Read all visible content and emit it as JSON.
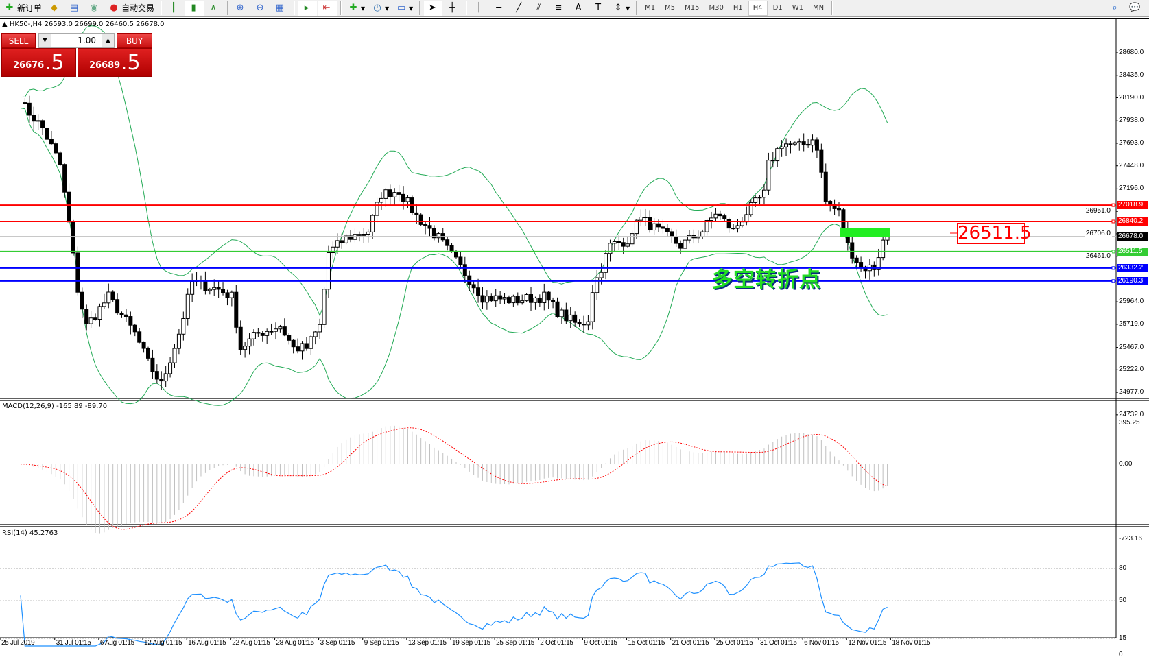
{
  "toolbar": {
    "new_order": "新订单",
    "auto_trading": "自动交易",
    "timeframes": [
      "M1",
      "M5",
      "M15",
      "M30",
      "H1",
      "H4",
      "D1",
      "W1",
      "MN"
    ],
    "active_timeframe": "H4"
  },
  "header": {
    "symbol_info": "HK50-,H4  26593.0 26699.0 26460.5 26678.0"
  },
  "trade_panel": {
    "sell_label": "SELL",
    "buy_label": "BUY",
    "lot": "1.00",
    "sell_main": "26676",
    "sell_frac": ".5",
    "buy_main": "26689",
    "buy_frac": ".5"
  },
  "annotations": {
    "price_box": "26511.5",
    "note": "多空转折点"
  },
  "colors": {
    "bull_line": "#22aa55",
    "resistance": "#ff0000",
    "pivot": "#33cc33",
    "support": "#0000ff",
    "macd_signal": "#ff0000",
    "rsi": "#1e90ff"
  },
  "chart_data": {
    "type": "candlestick",
    "symbol": "HK50-",
    "timeframe": "H4",
    "price_axis": [
      "28680.0",
      "28435.0",
      "28190.0",
      "27938.0",
      "27693.0",
      "27448.0",
      "27196.0",
      "26951.0",
      "26706.0",
      "26461.0",
      "25964.0",
      "25719.0",
      "25467.0",
      "25222.0",
      "24977.0",
      "24732.0"
    ],
    "ylim": [
      24732,
      28680
    ],
    "horizontal_lines": [
      {
        "price": 27018.9,
        "label": "27018.9",
        "color": "#ff0000"
      },
      {
        "price": 26840.2,
        "label": "26840.2",
        "color": "#ff0000"
      },
      {
        "price": 26678.0,
        "label": "26678.0",
        "color": "#000000"
      },
      {
        "price": 26511.5,
        "label": "26511.5",
        "color": "#33cc33"
      },
      {
        "price": 26332.2,
        "label": "26332.2",
        "color": "#0000ff"
      },
      {
        "price": 26190.3,
        "label": "26190.3",
        "color": "#0000ff"
      }
    ],
    "close_keypoints": [
      [
        0,
        28137
      ],
      [
        5,
        27857
      ],
      [
        9,
        27458
      ],
      [
        11,
        26818
      ],
      [
        13,
        26099
      ],
      [
        15,
        25700
      ],
      [
        20,
        26019
      ],
      [
        26,
        25620
      ],
      [
        29,
        25300
      ],
      [
        32,
        25060
      ],
      [
        36,
        25620
      ],
      [
        39,
        26179
      ],
      [
        45,
        26099
      ],
      [
        48,
        26019
      ],
      [
        50,
        25460
      ],
      [
        54,
        25620
      ],
      [
        59,
        25700
      ],
      [
        62,
        25460
      ],
      [
        65,
        25460
      ],
      [
        68,
        25700
      ],
      [
        70,
        26499
      ],
      [
        74,
        26658
      ],
      [
        79,
        26738
      ],
      [
        82,
        27138
      ],
      [
        86,
        27178
      ],
      [
        90,
        26898
      ],
      [
        95,
        26658
      ],
      [
        100,
        26339
      ],
      [
        105,
        26019
      ],
      [
        112,
        25979
      ],
      [
        119,
        26019
      ],
      [
        122,
        25859
      ],
      [
        127,
        25700
      ],
      [
        129,
        25780
      ],
      [
        130,
        26099
      ],
      [
        134,
        26578
      ],
      [
        139,
        26658
      ],
      [
        140,
        26898
      ],
      [
        145,
        26738
      ],
      [
        150,
        26578
      ],
      [
        155,
        26738
      ],
      [
        158,
        26938
      ],
      [
        162,
        26738
      ],
      [
        165,
        26938
      ],
      [
        169,
        27138
      ],
      [
        170,
        27458
      ],
      [
        173,
        27697
      ],
      [
        177,
        27657
      ],
      [
        180,
        27737
      ],
      [
        181,
        27657
      ],
      [
        183,
        27058
      ],
      [
        186,
        26938
      ],
      [
        188,
        26578
      ],
      [
        191,
        26339
      ],
      [
        194,
        26339
      ],
      [
        196,
        26618
      ],
      [
        197,
        26678
      ]
    ],
    "indicators": {
      "bands": "Bollinger",
      "macd": {
        "label": "MACD(12,26,9) -165.89 -89.70",
        "axis": [
          "395.25",
          "0.00",
          "-723.16"
        ],
        "ylim": [
          -723.16,
          395.25
        ]
      },
      "rsi": {
        "label": "RSI(14) 45.2763",
        "axis": [
          "80",
          "50",
          "15",
          "0"
        ],
        "levels": [
          80,
          50,
          15
        ],
        "ylim": [
          0,
          100
        ]
      }
    },
    "x_tick_labels": [
      "25 Jul 2019",
      "31 Jul 01:15",
      "6 Aug 01:15",
      "12 Aug 01:15",
      "16 Aug 01:15",
      "22 Aug 01:15",
      "28 Aug 01:15",
      "3 Sep 01:15",
      "9 Sep 01:15",
      "13 Sep 01:15",
      "19 Sep 01:15",
      "25 Sep 01:15",
      "2 Oct 01:15",
      "9 Oct 01:15",
      "15 Oct 01:15",
      "21 Oct 01:15",
      "25 Oct 01:15",
      "31 Oct 01:15",
      "6 Nov 01:15",
      "12 Nov 01:15",
      "18 Nov 01:15"
    ]
  }
}
